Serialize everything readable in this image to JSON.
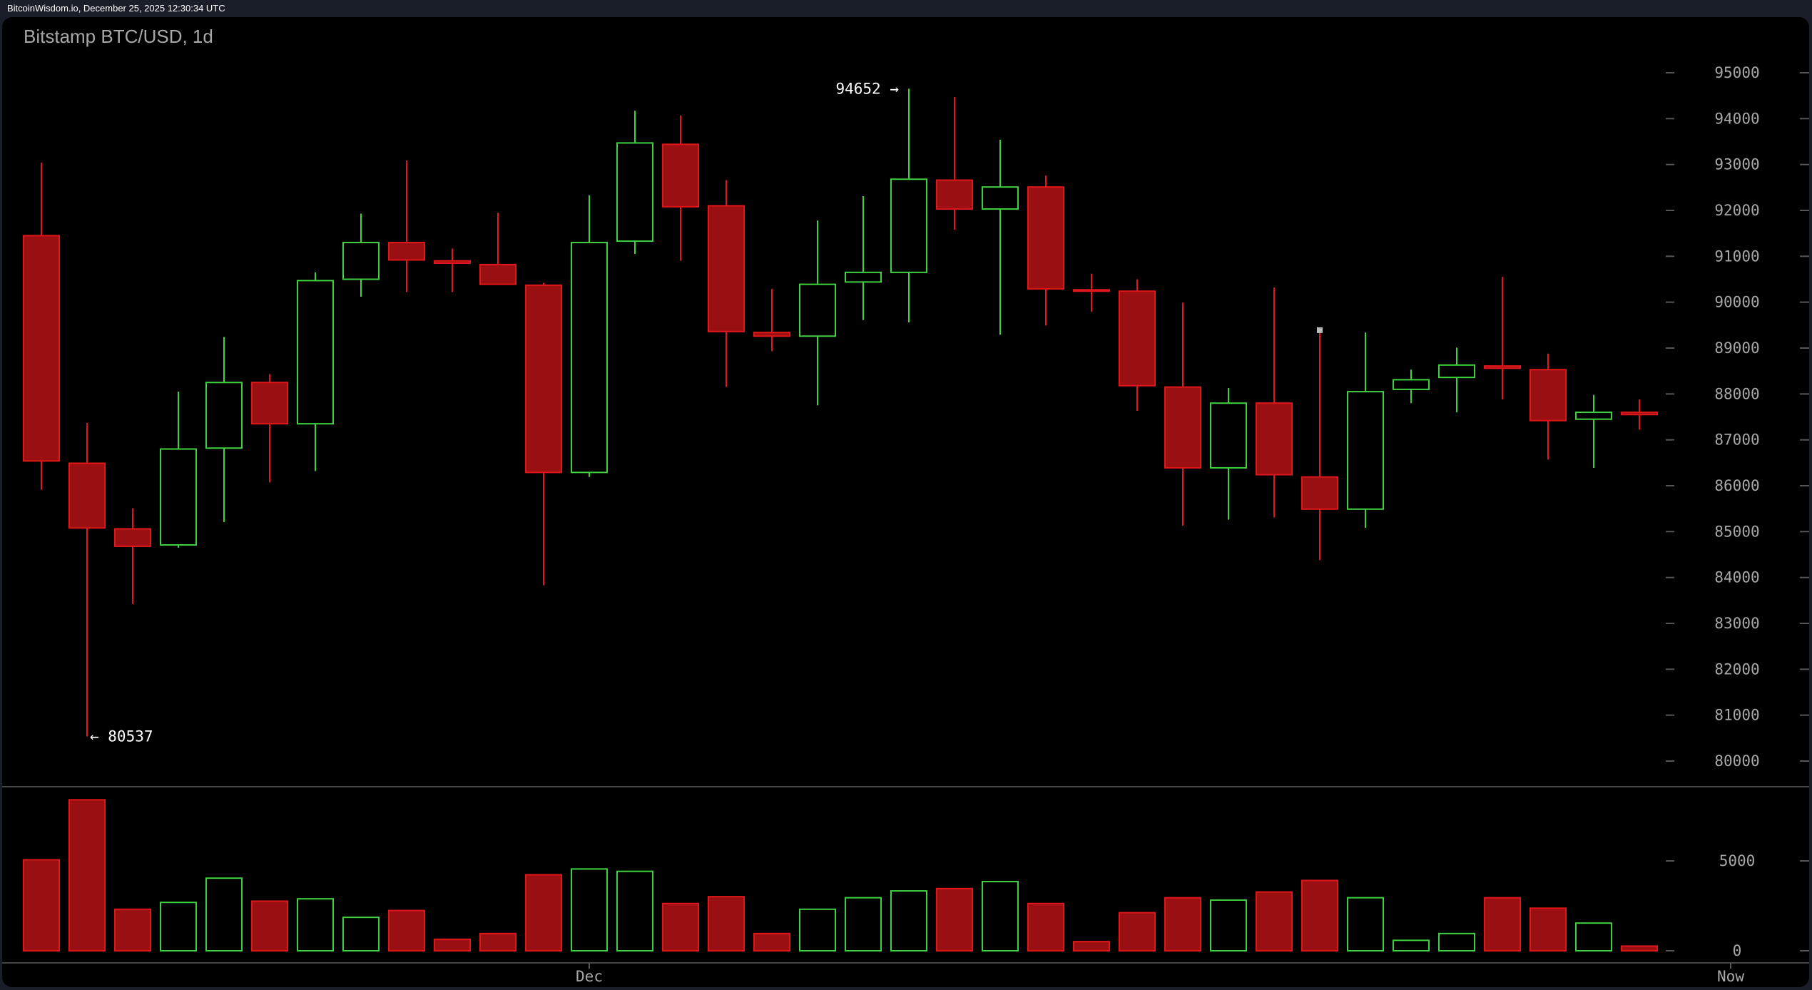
{
  "header": {
    "source_timestamp": "BitcoinWisdom.io, December 25, 2025 12:30:34 UTC"
  },
  "colors": {
    "up": "#3fd13f",
    "down": "#e0161a",
    "down_fill": "#9a0f11",
    "axis": "#a8a8a8",
    "background": "#000000"
  },
  "chart_data": {
    "type": "candlestick",
    "title": "Bitstamp BTC/USD, 1d",
    "price_axis": {
      "ticks": [
        80000,
        81000,
        82000,
        83000,
        84000,
        85000,
        86000,
        87000,
        88000,
        89000,
        90000,
        91000,
        92000,
        93000,
        94000,
        95000
      ],
      "range": [
        80000,
        95000
      ]
    },
    "volume_axis": {
      "ticks": [
        0,
        5000
      ],
      "range": [
        0,
        5000
      ]
    },
    "x_labels": [
      {
        "label": "Dec",
        "index": 12
      },
      {
        "label": "Now",
        "index": 37
      }
    ],
    "annotations": {
      "high": {
        "text": "94652 →",
        "value": 94652,
        "index": 19
      },
      "low": {
        "text": "← 80537",
        "value": 80537,
        "index": 1
      }
    },
    "candles": [
      {
        "o": 91450,
        "h": 93040,
        "l": 85910,
        "c": 86540,
        "v": 5060
      },
      {
        "o": 86490,
        "h": 87370,
        "l": 80537,
        "c": 85080,
        "v": 8400
      },
      {
        "o": 85060,
        "h": 85510,
        "l": 83420,
        "c": 84680,
        "v": 2310
      },
      {
        "o": 84710,
        "h": 88050,
        "l": 84650,
        "c": 86800,
        "v": 2690
      },
      {
        "o": 86820,
        "h": 89240,
        "l": 85210,
        "c": 88250,
        "v": 4040
      },
      {
        "o": 88250,
        "h": 88430,
        "l": 86070,
        "c": 87350,
        "v": 2760
      },
      {
        "o": 87350,
        "h": 90650,
        "l": 86320,
        "c": 90470,
        "v": 2890
      },
      {
        "o": 90500,
        "h": 91930,
        "l": 90120,
        "c": 91300,
        "v": 1860
      },
      {
        "o": 91300,
        "h": 93090,
        "l": 90220,
        "c": 90920,
        "v": 2240
      },
      {
        "o": 90900,
        "h": 91170,
        "l": 90220,
        "c": 90850,
        "v": 640
      },
      {
        "o": 90820,
        "h": 91950,
        "l": 90390,
        "c": 90390,
        "v": 960
      },
      {
        "o": 90370,
        "h": 90420,
        "l": 83830,
        "c": 86290,
        "v": 4230
      },
      {
        "o": 86290,
        "h": 92330,
        "l": 86190,
        "c": 91300,
        "v": 4550
      },
      {
        "o": 91330,
        "h": 94170,
        "l": 91050,
        "c": 93470,
        "v": 4420
      },
      {
        "o": 93440,
        "h": 94070,
        "l": 90900,
        "c": 92080,
        "v": 2630
      },
      {
        "o": 92100,
        "h": 92660,
        "l": 88150,
        "c": 89360,
        "v": 3010
      },
      {
        "o": 89340,
        "h": 90290,
        "l": 88930,
        "c": 89260,
        "v": 960
      },
      {
        "o": 89260,
        "h": 91780,
        "l": 87750,
        "c": 90390,
        "v": 2310
      },
      {
        "o": 90440,
        "h": 92310,
        "l": 89610,
        "c": 90650,
        "v": 2950
      },
      {
        "o": 90650,
        "h": 94652,
        "l": 89560,
        "c": 92680,
        "v": 3330
      },
      {
        "o": 92660,
        "h": 94470,
        "l": 91580,
        "c": 92030,
        "v": 3460
      },
      {
        "o": 92030,
        "h": 93540,
        "l": 89290,
        "c": 92510,
        "v": 3850
      },
      {
        "o": 92510,
        "h": 92760,
        "l": 89490,
        "c": 90290,
        "v": 2630
      },
      {
        "o": 90270,
        "h": 90620,
        "l": 89790,
        "c": 90240,
        "v": 510
      },
      {
        "o": 90240,
        "h": 90500,
        "l": 87630,
        "c": 88180,
        "v": 2120
      },
      {
        "o": 88150,
        "h": 89990,
        "l": 85130,
        "c": 86390,
        "v": 2950
      },
      {
        "o": 86390,
        "h": 88130,
        "l": 85260,
        "c": 87800,
        "v": 2820
      },
      {
        "o": 87800,
        "h": 90320,
        "l": 85310,
        "c": 86240,
        "v": 3270
      },
      {
        "o": 86190,
        "h": 89390,
        "l": 84380,
        "c": 85490,
        "v": 3910
      },
      {
        "o": 85490,
        "h": 89340,
        "l": 85080,
        "c": 88050,
        "v": 2950
      },
      {
        "o": 88100,
        "h": 88530,
        "l": 87800,
        "c": 88310,
        "v": 580
      },
      {
        "o": 88360,
        "h": 89010,
        "l": 87600,
        "c": 88630,
        "v": 960
      },
      {
        "o": 88610,
        "h": 90550,
        "l": 87880,
        "c": 88560,
        "v": 2950
      },
      {
        "o": 88530,
        "h": 88880,
        "l": 86570,
        "c": 87420,
        "v": 2370
      },
      {
        "o": 87450,
        "h": 87980,
        "l": 86390,
        "c": 87600,
        "v": 1540
      },
      {
        "o": 87600,
        "h": 87880,
        "l": 87220,
        "c": 87550,
        "v": 260
      }
    ]
  }
}
